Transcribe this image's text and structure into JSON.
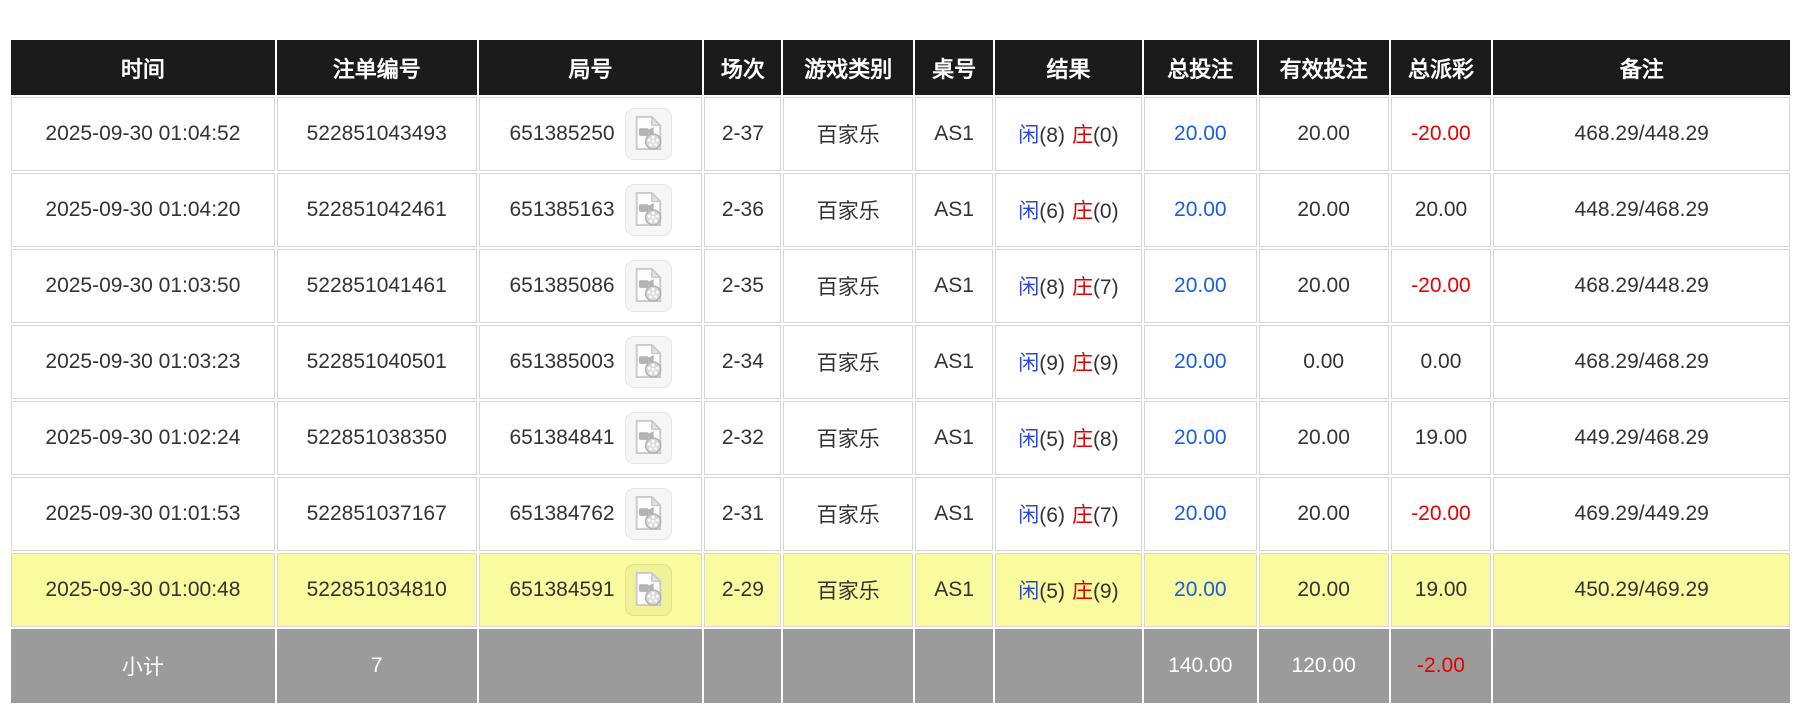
{
  "colors": {
    "header_bg": "#1b1b1b",
    "highlight_row": "#fafa9e",
    "subtotal_bg": "#9b9b9b",
    "negative_red": "#e60000",
    "amount_blue": "#1a5fd9",
    "player_blue": "#2c46d8",
    "banker_red": "#e00000",
    "cell_border": "#d6d6d6"
  },
  "icons": {
    "video": "video-file-icon"
  },
  "table": {
    "columns": [
      {
        "key": "time",
        "label": "时间"
      },
      {
        "key": "bet_id",
        "label": "注单编号"
      },
      {
        "key": "round_id",
        "label": "局号"
      },
      {
        "key": "session",
        "label": "场次"
      },
      {
        "key": "game_type",
        "label": "游戏类别"
      },
      {
        "key": "table_no",
        "label": "桌号"
      },
      {
        "key": "result",
        "label": "结果"
      },
      {
        "key": "total_bet",
        "label": "总投注"
      },
      {
        "key": "valid_bet",
        "label": "有效投注"
      },
      {
        "key": "total_payout",
        "label": "总派彩"
      },
      {
        "key": "remark",
        "label": "备注"
      }
    ],
    "rows": [
      {
        "time": "2025-09-30 01:04:52",
        "bet_id": "522851043493",
        "round_id": "651385250",
        "session": "2-37",
        "game_type": "百家乐",
        "table_no": "AS1",
        "result": {
          "player": "闲",
          "player_score": "(8)",
          "banker": "庄",
          "banker_score": "(0)"
        },
        "total_bet": "20.00",
        "valid_bet": "20.00",
        "total_payout": "-20.00",
        "remark": "468.29/448.29",
        "highlighted": false
      },
      {
        "time": "2025-09-30 01:04:20",
        "bet_id": "522851042461",
        "round_id": "651385163",
        "session": "2-36",
        "game_type": "百家乐",
        "table_no": "AS1",
        "result": {
          "player": "闲",
          "player_score": "(6)",
          "banker": "庄",
          "banker_score": "(0)"
        },
        "total_bet": "20.00",
        "valid_bet": "20.00",
        "total_payout": "20.00",
        "remark": "448.29/468.29",
        "highlighted": false
      },
      {
        "time": "2025-09-30 01:03:50",
        "bet_id": "522851041461",
        "round_id": "651385086",
        "session": "2-35",
        "game_type": "百家乐",
        "table_no": "AS1",
        "result": {
          "player": "闲",
          "player_score": "(8)",
          "banker": "庄",
          "banker_score": "(7)"
        },
        "total_bet": "20.00",
        "valid_bet": "20.00",
        "total_payout": "-20.00",
        "remark": "468.29/448.29",
        "highlighted": false
      },
      {
        "time": "2025-09-30 01:03:23",
        "bet_id": "522851040501",
        "round_id": "651385003",
        "session": "2-34",
        "game_type": "百家乐",
        "table_no": "AS1",
        "result": {
          "player": "闲",
          "player_score": "(9)",
          "banker": "庄",
          "banker_score": "(9)"
        },
        "total_bet": "20.00",
        "valid_bet": "0.00",
        "total_payout": "0.00",
        "remark": "468.29/468.29",
        "highlighted": false
      },
      {
        "time": "2025-09-30 01:02:24",
        "bet_id": "522851038350",
        "round_id": "651384841",
        "session": "2-32",
        "game_type": "百家乐",
        "table_no": "AS1",
        "result": {
          "player": "闲",
          "player_score": "(5)",
          "banker": "庄",
          "banker_score": "(8)"
        },
        "total_bet": "20.00",
        "valid_bet": "20.00",
        "total_payout": "19.00",
        "remark": "449.29/468.29",
        "highlighted": false
      },
      {
        "time": "2025-09-30 01:01:53",
        "bet_id": "522851037167",
        "round_id": "651384762",
        "session": "2-31",
        "game_type": "百家乐",
        "table_no": "AS1",
        "result": {
          "player": "闲",
          "player_score": "(6)",
          "banker": "庄",
          "banker_score": "(7)"
        },
        "total_bet": "20.00",
        "valid_bet": "20.00",
        "total_payout": "-20.00",
        "remark": "469.29/449.29",
        "highlighted": false
      },
      {
        "time": "2025-09-30 01:00:48",
        "bet_id": "522851034810",
        "round_id": "651384591",
        "session": "2-29",
        "game_type": "百家乐",
        "table_no": "AS1",
        "result": {
          "player": "闲",
          "player_score": "(5)",
          "banker": "庄",
          "banker_score": "(9)"
        },
        "total_bet": "20.00",
        "valid_bet": "20.00",
        "total_payout": "19.00",
        "remark": "450.29/469.29",
        "highlighted": true
      }
    ],
    "subtotal": {
      "label": "小计",
      "count": "7",
      "total_bet": "140.00",
      "valid_bet": "120.00",
      "total_payout": "-2.00"
    }
  }
}
